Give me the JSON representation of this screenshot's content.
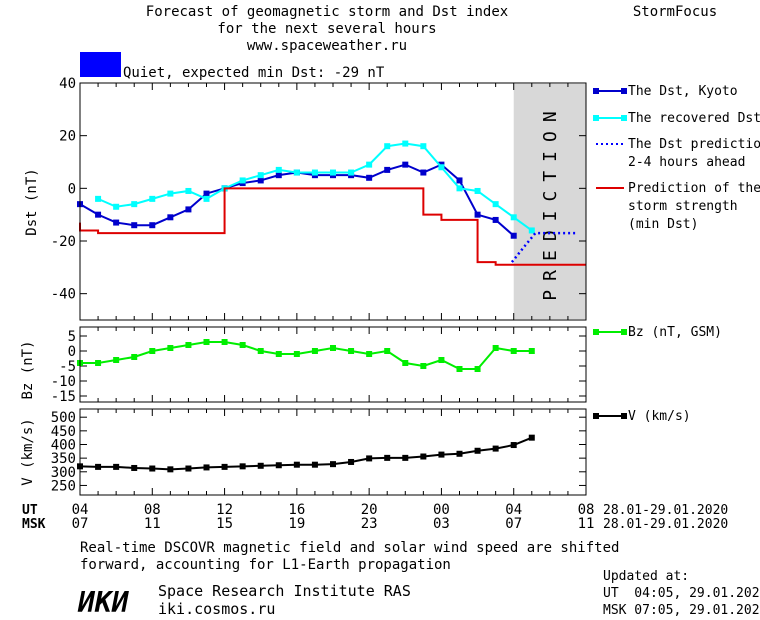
{
  "header": {
    "title_line1": "Forecast of geomagnetic storm and Dst index",
    "title_line2": "for the next several hours",
    "url": "www.spaceweather.ru",
    "brand": "StormFocus"
  },
  "status": {
    "color": "#0000ff",
    "text": "Quiet, expected min Dst: -29 nT"
  },
  "prediction_label": "PREDICTION",
  "axes": {
    "dst_ylabel": "Dst (nT)",
    "bz_ylabel": "Bz (nT)",
    "v_ylabel": "V (km/s)",
    "ut_label": "UT",
    "msk_label": "MSK",
    "ut_ticks": [
      "04",
      "08",
      "12",
      "16",
      "20",
      "00",
      "04",
      "08"
    ],
    "msk_ticks": [
      "07",
      "11",
      "15",
      "19",
      "23",
      "03",
      "07",
      "11"
    ],
    "date_range_ut": "28.01-29.01.2020",
    "date_range_msk": "28.01-29.01.2020"
  },
  "footer": {
    "note_line1": "Real-time DSCOVR magnetic field and solar wind speed are shifted",
    "note_line2": "forward, accounting for L1-Earth propagation",
    "logo": "ИКИ",
    "institute": "Space Research Institute RAS",
    "website": "iki.cosmos.ru",
    "updated_label": "Updated at:",
    "updated_ut": "UT  04:05, 29.01.2020",
    "updated_msk": "MSK 07:05, 29.01.2020"
  },
  "chart_data": [
    {
      "type": "line",
      "x_unit": "hours (UT) since 04:00 28.01.2020",
      "xlim": [
        0,
        28
      ],
      "xticks": [
        0,
        4,
        8,
        12,
        16,
        20,
        24,
        28
      ],
      "ylim": [
        -50,
        40
      ],
      "yticks": [
        40,
        20,
        0,
        -20,
        -40
      ],
      "ylabel": "Dst (nT)",
      "prediction_region": [
        24,
        28
      ],
      "series": [
        {
          "name": "The Dst, Kyoto",
          "color": "#0000cc",
          "style": "line-square",
          "x": [
            0,
            1,
            2,
            3,
            4,
            5,
            6,
            7,
            8,
            9,
            10,
            11,
            12,
            13,
            14,
            15,
            16,
            17,
            18,
            19,
            20,
            21,
            22,
            23,
            24
          ],
          "y": [
            -6,
            -10,
            -13,
            -14,
            -14,
            -11,
            -8,
            -2,
            0,
            2,
            3,
            5,
            6,
            5,
            5,
            5,
            4,
            7,
            9,
            6,
            9,
            3,
            -10,
            -12,
            -18
          ]
        },
        {
          "name": "The recovered Dst",
          "color": "#00ffff",
          "style": "line-square",
          "x": [
            1,
            2,
            3,
            4,
            5,
            6,
            7,
            8,
            9,
            10,
            11,
            12,
            13,
            14,
            15,
            16,
            17,
            18,
            19,
            20,
            21,
            22,
            23,
            24,
            25
          ],
          "y": [
            -4,
            -7,
            -6,
            -4,
            -2,
            -1,
            -4,
            0,
            3,
            5,
            7,
            6,
            6,
            6,
            6,
            9,
            16,
            17,
            16,
            8,
            0,
            -1,
            -6,
            -11,
            -16
          ]
        },
        {
          "name": "The Dst prediction 2-4 hours ahead",
          "color": "#0000ff",
          "style": "dotted",
          "x": [
            23.9,
            24.6,
            25.2,
            26.0,
            27.4
          ],
          "y": [
            -28,
            -22,
            -17,
            -17,
            -17
          ]
        },
        {
          "name": "Prediction of the storm strength (min Dst)",
          "color": "#dd0000",
          "style": "step",
          "x": [
            -1,
            0,
            1,
            2,
            3,
            4,
            5,
            6,
            7,
            8,
            9,
            10,
            11,
            12,
            13,
            14,
            15,
            16,
            17,
            18,
            19,
            20,
            21,
            22,
            23,
            24,
            25,
            26,
            27,
            28
          ],
          "y": [
            -13,
            -16,
            -17,
            -17,
            -17,
            -17,
            -17,
            -17,
            -17,
            0,
            0,
            0,
            0,
            0,
            0,
            0,
            0,
            0,
            0,
            0,
            -10,
            -12,
            -12,
            -28,
            -29,
            -29,
            -29,
            -29,
            -29,
            -29
          ]
        }
      ]
    },
    {
      "type": "line",
      "xlim": [
        0,
        28
      ],
      "ylim": [
        -17,
        8
      ],
      "yticks": [
        5,
        0,
        -5,
        -10,
        -15
      ],
      "ylabel": "Bz (nT)",
      "series": [
        {
          "name": "Bz (nT, GSM)",
          "color": "#00ee00",
          "style": "line-square",
          "x": [
            0,
            1,
            2,
            3,
            4,
            5,
            6,
            7,
            8,
            9,
            10,
            11,
            12,
            13,
            14,
            15,
            16,
            17,
            18,
            19,
            20,
            21,
            22,
            23,
            24,
            25
          ],
          "y": [
            -4,
            -4,
            -3,
            -2,
            0,
            1,
            2,
            3,
            3,
            2,
            0,
            -1,
            -1,
            0,
            1,
            0,
            -1,
            0,
            -4,
            -5,
            -3,
            -6,
            -6,
            1,
            0,
            0
          ]
        }
      ]
    },
    {
      "type": "line",
      "xlim": [
        0,
        28
      ],
      "ylim": [
        215,
        530
      ],
      "yticks": [
        500,
        450,
        400,
        350,
        300,
        250
      ],
      "ylabel": "V (km/s)",
      "series": [
        {
          "name": "V (km/s)",
          "color": "#000000",
          "style": "line-square",
          "x": [
            0,
            1,
            2,
            3,
            4,
            5,
            6,
            7,
            8,
            9,
            10,
            11,
            12,
            13,
            14,
            15,
            16,
            17,
            18,
            19,
            20,
            21,
            22,
            23,
            24,
            25
          ],
          "y": [
            320,
            318,
            318,
            314,
            312,
            309,
            312,
            316,
            318,
            320,
            322,
            324,
            326,
            326,
            328,
            336,
            349,
            351,
            351,
            356,
            363,
            366,
            377,
            385,
            398,
            425
          ]
        }
      ]
    }
  ]
}
